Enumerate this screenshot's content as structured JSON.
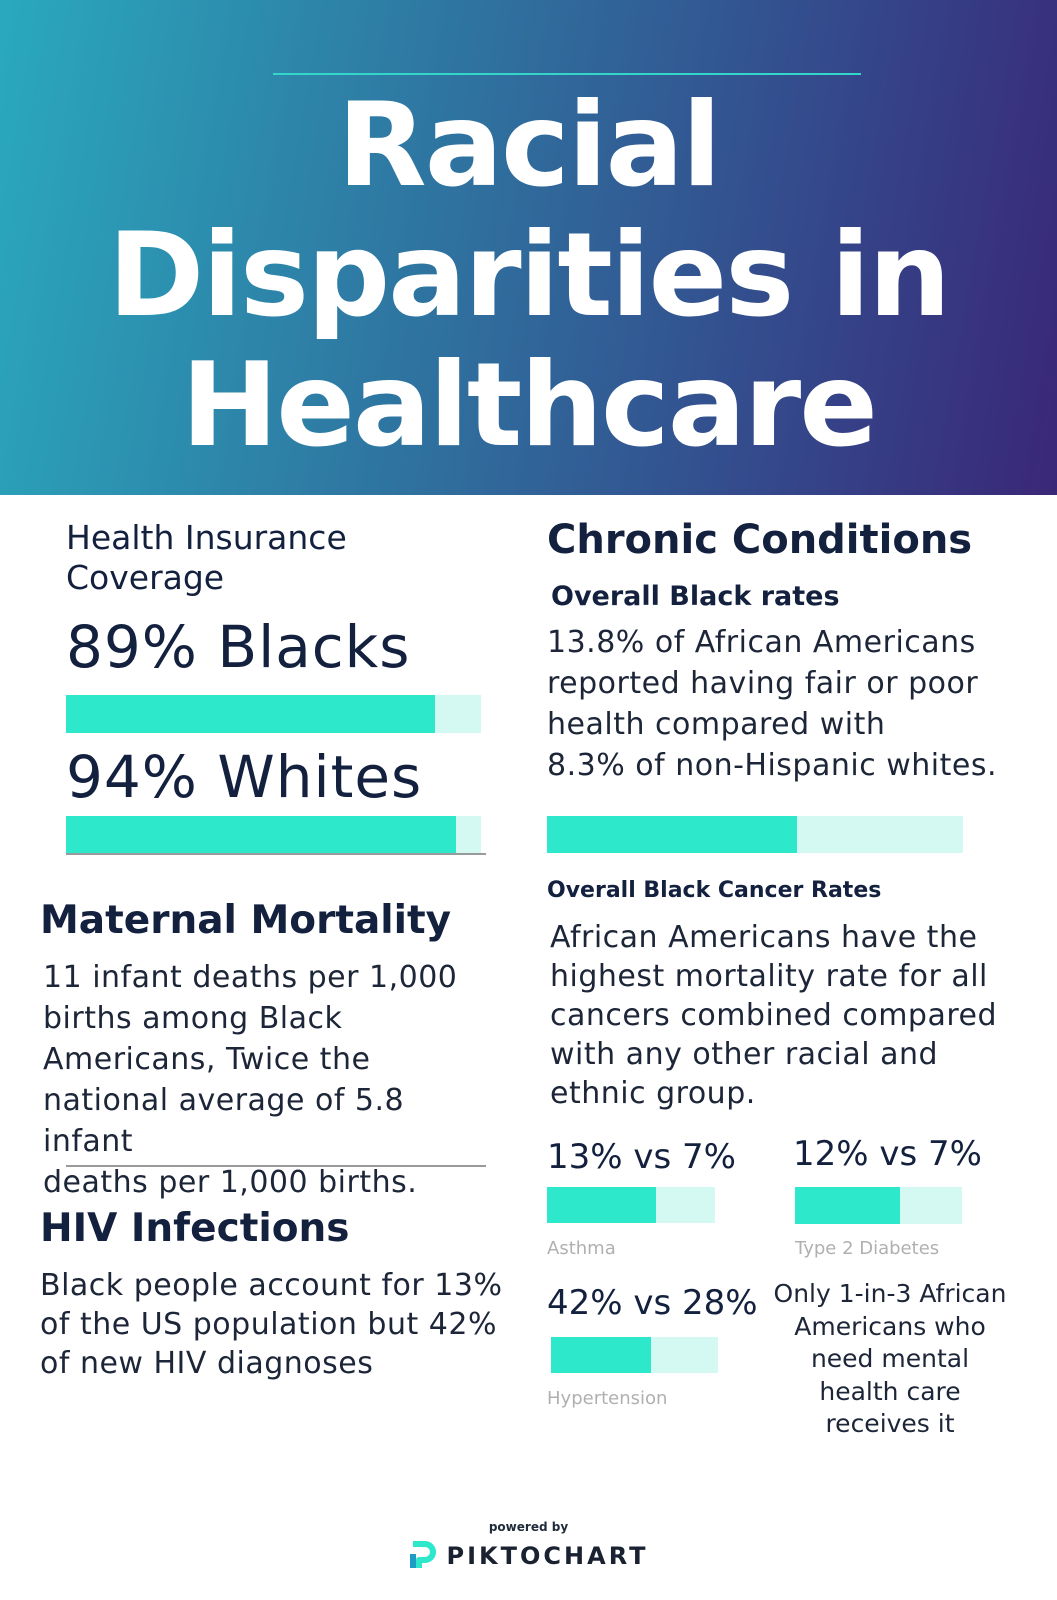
{
  "title": {
    "line1": "Racial",
    "line2": "Disparities in",
    "line3": "Healthcare"
  },
  "insurance": {
    "heading_line1": "Health Insurance",
    "heading_line2": "Coverage",
    "blacks_label": "89% Blacks",
    "blacks_value": 0.89,
    "whites_label": "94% Whites",
    "whites_value": 0.94
  },
  "maternal": {
    "heading": "Maternal Mortality",
    "lines": [
      "11 infant deaths per 1,000",
      "births among Black",
      "Americans, Twice the",
      "national average of 5.8 infant",
      "deaths per 1,000 births."
    ]
  },
  "hiv": {
    "heading": "HIV Infections",
    "lines": [
      "Black people account for 13%",
      "of the US population but 42%",
      "of new HIV diagnoses"
    ]
  },
  "chronic": {
    "heading": "Chronic Conditions",
    "overall_heading": "Overall Black rates",
    "overall_lines": [
      "13.8% of African Americans",
      "reported having fair or poor",
      "health compared with",
      "8.3% of non-Hispanic whites."
    ],
    "overall_bar_value": 0.6,
    "cancer_heading": "Overall Black Cancer Rates",
    "cancer_lines": [
      "African Americans have the",
      "highest mortality rate for all",
      "cancers combined compared",
      "with any other racial and",
      "ethnic group."
    ]
  },
  "stats": {
    "asthma": {
      "label": "13% vs 7%",
      "caption": "Asthma",
      "value": 0.65
    },
    "diabetes": {
      "label": "12% vs 7%",
      "caption": "Type 2 Diabetes",
      "value": 0.63
    },
    "hypertension": {
      "label": "42% vs 28%",
      "caption": "Hypertension",
      "value": 0.6
    }
  },
  "mental_health": {
    "lines": [
      "Only 1-in-3 African",
      "Americans who",
      "need mental",
      "health care",
      "receives it"
    ]
  },
  "footer": {
    "powered_by": "powered by",
    "brand": "PIKTOCHART"
  }
}
